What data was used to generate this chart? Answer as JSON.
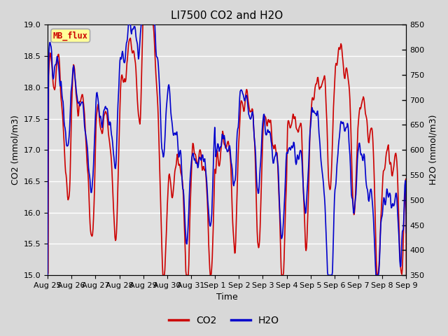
{
  "title": "LI7500 CO2 and H2O",
  "xlabel": "Time",
  "ylabel_left": "CO2 (mmol/m3)",
  "ylabel_right": "H2O (mmol/m3)",
  "co2_color": "#cc0000",
  "h2o_color": "#0000cc",
  "ylim_left": [
    15.0,
    19.0
  ],
  "ylim_right": [
    350,
    850
  ],
  "yticks_left": [
    15.0,
    15.5,
    16.0,
    16.5,
    17.0,
    17.5,
    18.0,
    18.5,
    19.0
  ],
  "yticks_right": [
    350,
    400,
    450,
    500,
    550,
    600,
    650,
    700,
    750,
    800,
    850
  ],
  "xtick_labels": [
    "Aug 25",
    "Aug 26",
    "Aug 27",
    "Aug 28",
    "Aug 29",
    "Aug 30",
    "Aug 31",
    "Sep 1",
    "Sep 2",
    "Sep 3",
    "Sep 4",
    "Sep 5",
    "Sep 6",
    "Sep 7",
    "Sep 8",
    "Sep 9"
  ],
  "fig_facecolor": "#d8d8d8",
  "plot_bg_color": "#e0e0e0",
  "grid_color": "#ffffff",
  "label_box_text": "MB_flux",
  "label_box_facecolor": "#ffff99",
  "label_box_edgecolor": "#aaaaaa",
  "label_box_textcolor": "#cc0000",
  "tick_labelsize": 8,
  "axis_labelsize": 9,
  "title_fontsize": 11,
  "linewidth": 1.2
}
